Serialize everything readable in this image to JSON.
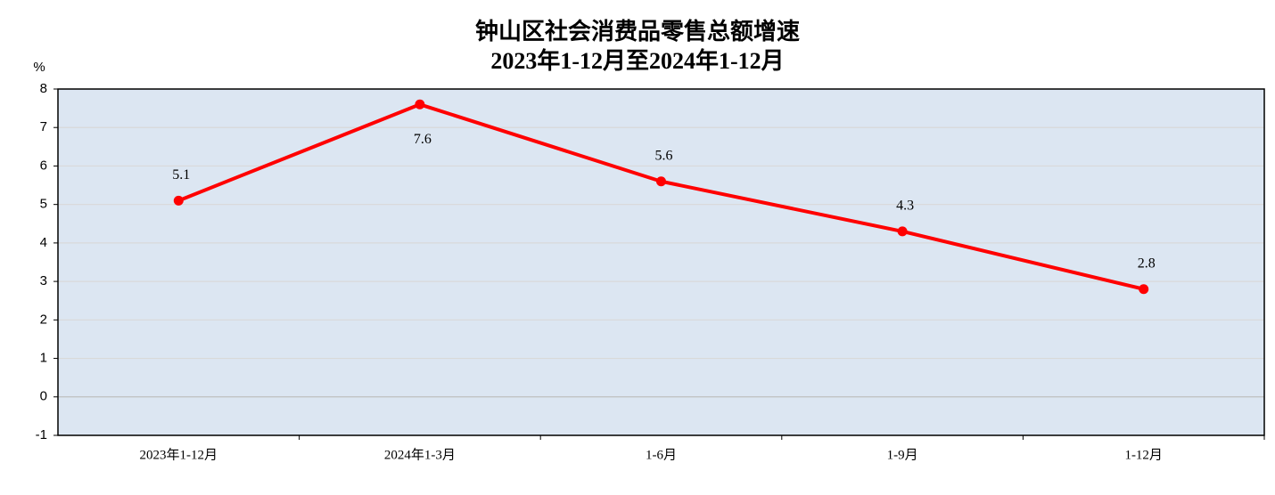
{
  "chart_data": {
    "type": "line",
    "title": "钟山区社会消费品零售总额增速",
    "subtitle": "2023年1-12月至2024年1-12月",
    "y_label": "%",
    "categories": [
      "2023年1-12月",
      "2024年1-3月",
      "1-6月",
      "1-9月",
      "1-12月"
    ],
    "series": [
      {
        "name": "增速",
        "color": "#ff0000",
        "values": [
          5.1,
          7.6,
          5.6,
          4.3,
          2.8
        ]
      }
    ],
    "ylim": [
      -1,
      8
    ],
    "yticks": [
      -1,
      0,
      1,
      2,
      3,
      4,
      5,
      6,
      7,
      8
    ],
    "grid": true
  }
}
